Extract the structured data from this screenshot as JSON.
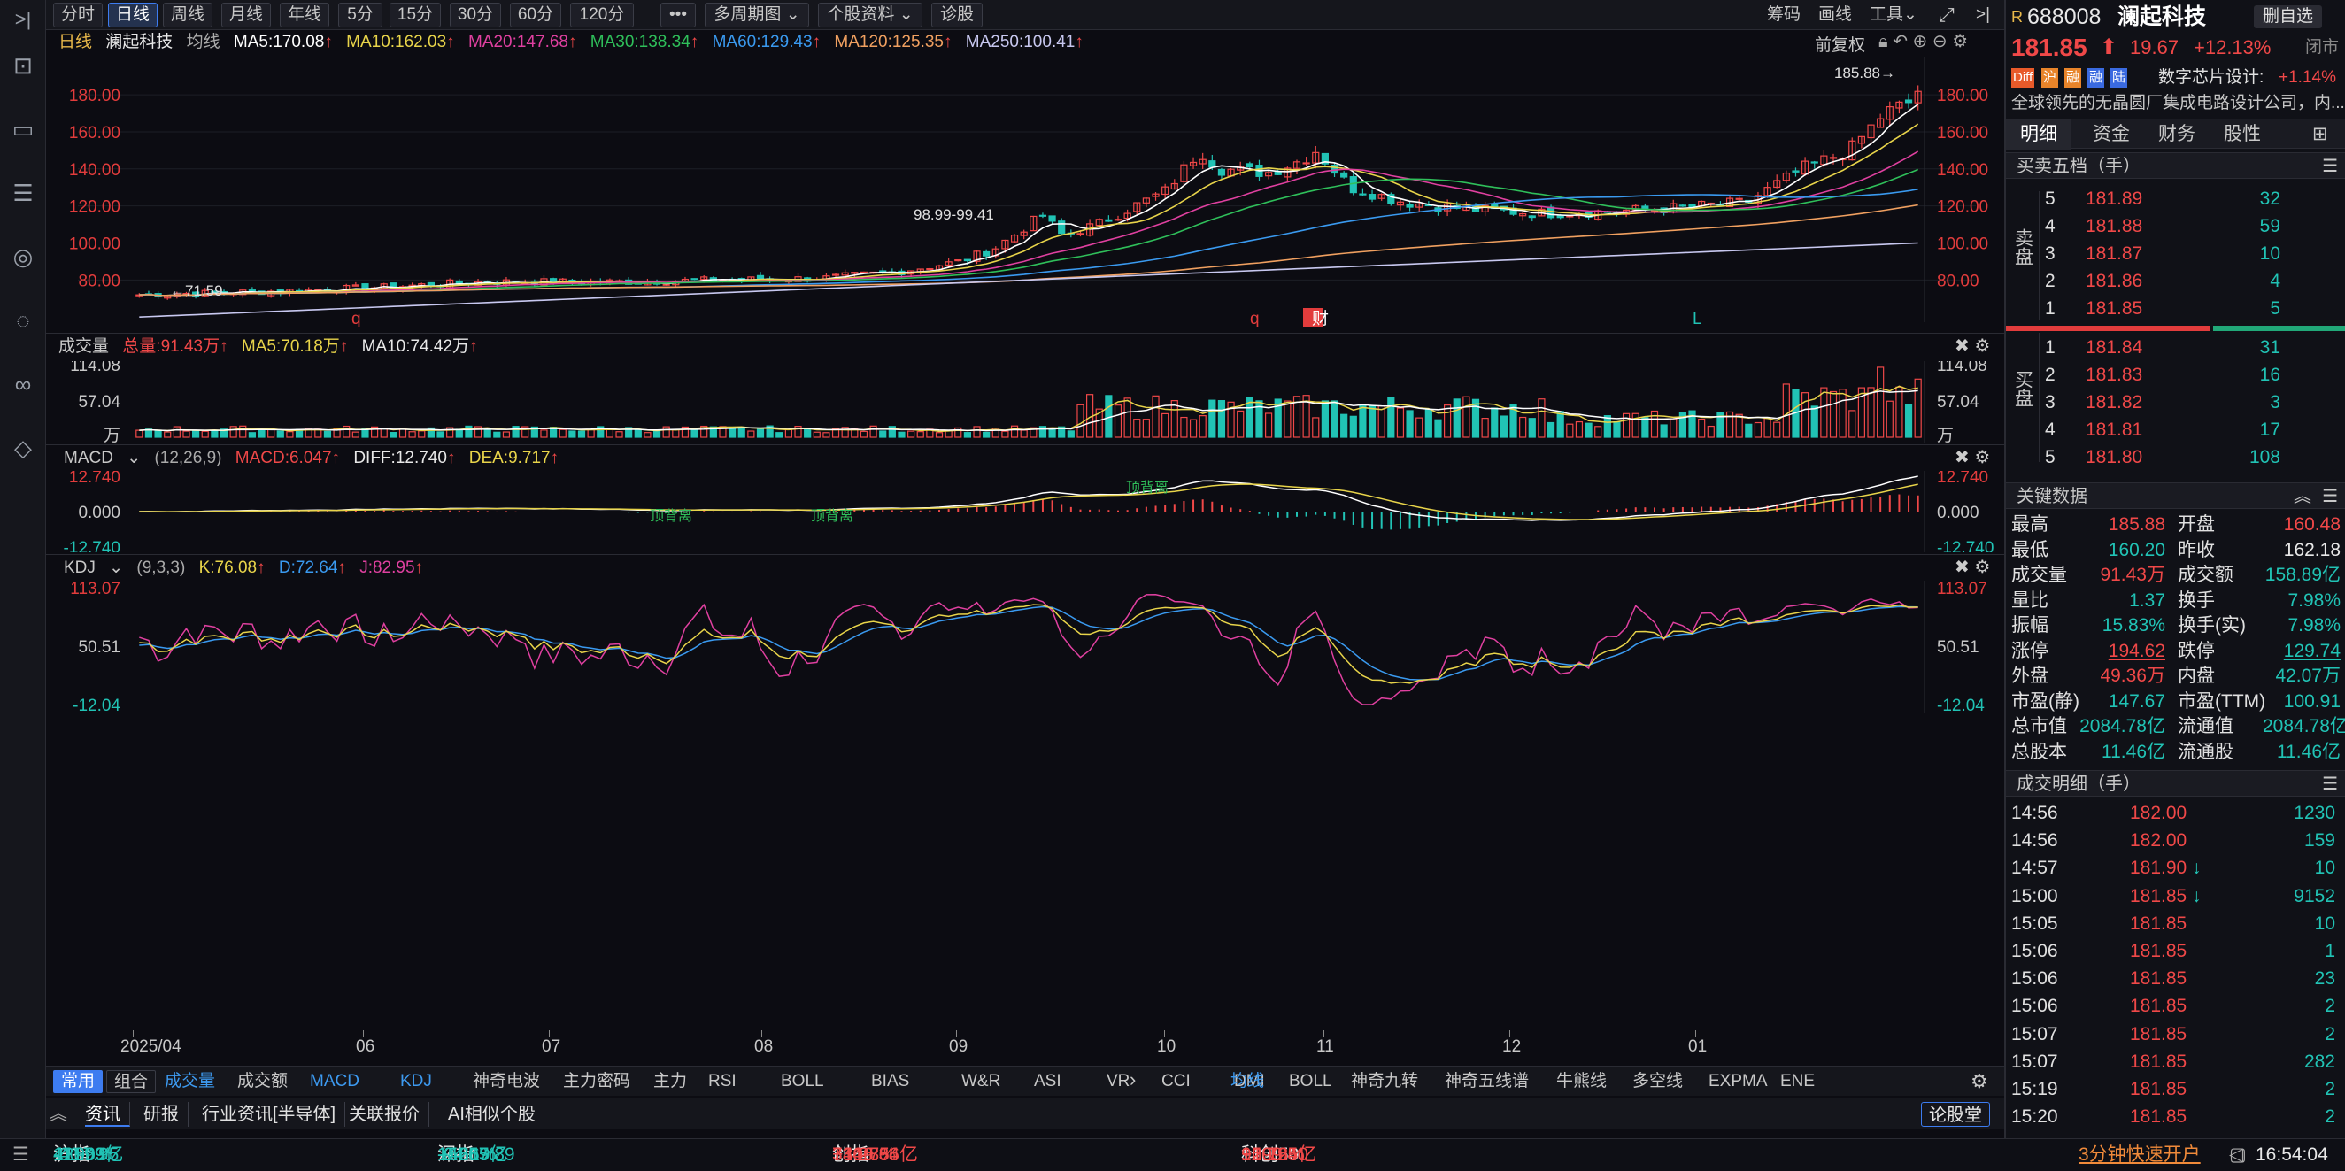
{
  "toolbar": {
    "periods": [
      "分时",
      "日线",
      "周线",
      "月线",
      "年线",
      "5分",
      "15分",
      "30分",
      "60分",
      "120分",
      "•••",
      "多周期图",
      "个股资料",
      "诊股"
    ],
    "right": [
      "筹码",
      "画线",
      "工具"
    ]
  },
  "stock": {
    "code": "688008",
    "name": "澜起科技",
    "price": "181.85",
    "change": "19.67",
    "pct": "+12.13%",
    "status": "闭市",
    "watch": "删自选",
    "badges": [
      "Diff",
      "沪",
      "融",
      "融",
      "陆"
    ],
    "sector": "数字芯片设计:",
    "sector_pct": "+1.14%",
    "desc": "全球领先的无晶圆厂集成电路设计公司，内..."
  },
  "main_legend": {
    "period": "日线",
    "name": "澜起科技",
    "ma_label": "均线",
    "ma5": "MA5:170.08",
    "ma10": "MA10:162.03",
    "ma20": "MA20:147.68",
    "ma30": "MA30:138.34",
    "ma60": "MA60:129.43",
    "ma120": "MA120:125.35",
    "ma250": "MA250:100.41",
    "adjust": "前复权"
  },
  "main_axis": [
    "180.00",
    "160.00",
    "140.00",
    "120.00",
    "100.00",
    "80.00"
  ],
  "main_annot": {
    "high": "185.88",
    "low": "71.59",
    "mid": "98.99-99.41",
    "markers": [
      "q",
      "q",
      "财",
      "L"
    ]
  },
  "vol_legend": {
    "label": "成交量",
    "total": "总量:91.43万",
    "ma5": "MA5:70.18万",
    "ma10": "MA10:74.42万"
  },
  "vol_axis": [
    "114.08",
    "57.04",
    "万"
  ],
  "macd_legend": {
    "label": "MACD",
    "params": "(12,26,9)",
    "macd": "MACD:6.047",
    "diff": "DIFF:12.740",
    "dea": "DEA:9.717"
  },
  "macd_axis": [
    "12.740",
    "0.000",
    "-12.740"
  ],
  "macd_annot": [
    "顶背离",
    "顶背离",
    "顶背离"
  ],
  "kdj_legend": {
    "label": "KDJ",
    "params": "(9,3,3)",
    "k": "K:76.08",
    "d": "D:72.64",
    "j": "J:82.95"
  },
  "kdj_axis": [
    "113.07",
    "50.51",
    "-12.04"
  ],
  "x_axis": [
    "2025/04",
    "06",
    "07",
    "08",
    "09",
    "10",
    "11",
    "12",
    "01"
  ],
  "ind_tabs": {
    "left": [
      "常用",
      "组合"
    ],
    "mid": [
      "成交量",
      "成交额",
      "MACD",
      "KDJ",
      "神奇电波",
      "主力密码",
      "主力",
      "RSI",
      "BOLL",
      "BIAS",
      "W&R",
      "ASI",
      "VR",
      "CCI",
      "DMI"
    ],
    "right": [
      "均线",
      "BOLL",
      "神奇九转",
      "神奇五线谱",
      "牛熊线",
      "多空线",
      "EXPMA",
      "ENE"
    ]
  },
  "news_tabs": [
    "资讯",
    "研报",
    "行业资讯[半导体]",
    "关联报价",
    "AI相似个股"
  ],
  "news_right": "论股堂",
  "rp_tabs": [
    "明细",
    "资金",
    "财务",
    "股性"
  ],
  "order_title": "买卖五档（手）",
  "sell": [
    {
      "n": "5",
      "p": "181.89",
      "v": "32"
    },
    {
      "n": "4",
      "p": "181.88",
      "v": "59"
    },
    {
      "n": "3",
      "p": "181.87",
      "v": "10"
    },
    {
      "n": "2",
      "p": "181.86",
      "v": "4"
    },
    {
      "n": "1",
      "p": "181.85",
      "v": "5"
    }
  ],
  "buy": [
    {
      "n": "1",
      "p": "181.84",
      "v": "31"
    },
    {
      "n": "2",
      "p": "181.83",
      "v": "16"
    },
    {
      "n": "3",
      "p": "181.82",
      "v": "3"
    },
    {
      "n": "4",
      "p": "181.81",
      "v": "17"
    },
    {
      "n": "5",
      "p": "181.80",
      "v": "108"
    }
  ],
  "sell_label": "卖盘",
  "buy_label": "买盘",
  "key_title": "关键数据",
  "key": [
    [
      "最高",
      "185.88",
      "开盘",
      "160.48"
    ],
    [
      "最低",
      "160.20",
      "昨收",
      "162.18"
    ],
    [
      "成交量",
      "91.43万",
      "成交额",
      "158.89亿"
    ],
    [
      "量比",
      "1.37",
      "换手",
      "7.98%"
    ],
    [
      "振幅",
      "15.83%",
      "换手(实)",
      "7.98%"
    ],
    [
      "涨停",
      "194.62",
      "跌停",
      "129.74"
    ],
    [
      "外盘",
      "49.36万",
      "内盘",
      "42.07万"
    ],
    [
      "市盈(静)",
      "147.67",
      "市盈(TTM)",
      "100.91"
    ],
    [
      "总市值",
      "2084.78亿",
      "流通值",
      "2084.78亿"
    ],
    [
      "总股本",
      "11.46亿",
      "流通股",
      "11.46亿"
    ]
  ],
  "trades_title": "成交明细（手）",
  "trades": [
    {
      "t": "14:56",
      "p": "182.00",
      "v": "1230",
      "a": ""
    },
    {
      "t": "14:56",
      "p": "182.00",
      "v": "159",
      "a": ""
    },
    {
      "t": "14:57",
      "p": "181.90",
      "v": "10",
      "a": "↓"
    },
    {
      "t": "15:00",
      "p": "181.85",
      "v": "9152",
      "a": "↓"
    },
    {
      "t": "15:05",
      "p": "181.85",
      "v": "10",
      "a": ""
    },
    {
      "t": "15:06",
      "p": "181.85",
      "v": "1",
      "a": ""
    },
    {
      "t": "15:06",
      "p": "181.85",
      "v": "23",
      "a": ""
    },
    {
      "t": "15:06",
      "p": "181.85",
      "v": "2",
      "a": ""
    },
    {
      "t": "15:07",
      "p": "181.85",
      "v": "2",
      "a": ""
    },
    {
      "t": "15:07",
      "p": "181.85",
      "v": "282",
      "a": ""
    },
    {
      "t": "15:19",
      "p": "181.85",
      "v": "2",
      "a": ""
    },
    {
      "t": "15:20",
      "p": "181.85",
      "v": "2",
      "a": ""
    }
  ],
  "status": {
    "sh": {
      "name": "沪指",
      "val": "4117.95",
      "chg": "-40.03",
      "pct": "-0.96%",
      "amt": "12699亿"
    },
    "sz": {
      "name": "深指",
      "val": "14205.89",
      "chg": "-94.19",
      "pct": "-0.66%",
      "amt": "15657亿"
    },
    "cy": {
      "name": "创指",
      "val": "3346.36",
      "chg": "+41.85",
      "pct": "+1.27%",
      "amt": "7309.64亿"
    },
    "kc": {
      "name": "科创50",
      "val": "1509.40",
      "chg": "+1.76",
      "pct": "+0.12%",
      "amt": "929.95亿"
    },
    "promo": "3分钟快速开户",
    "time": "16:54:04"
  },
  "colors": {
    "up": "#f04848",
    "down": "#21c3b5",
    "ma5": "#ffffff",
    "ma10": "#e8d44a",
    "ma20": "#e040a0",
    "ma30": "#2fbf5a",
    "ma60": "#3a9af0",
    "ma120": "#f0a060",
    "ma250": "#c8c8f0"
  }
}
